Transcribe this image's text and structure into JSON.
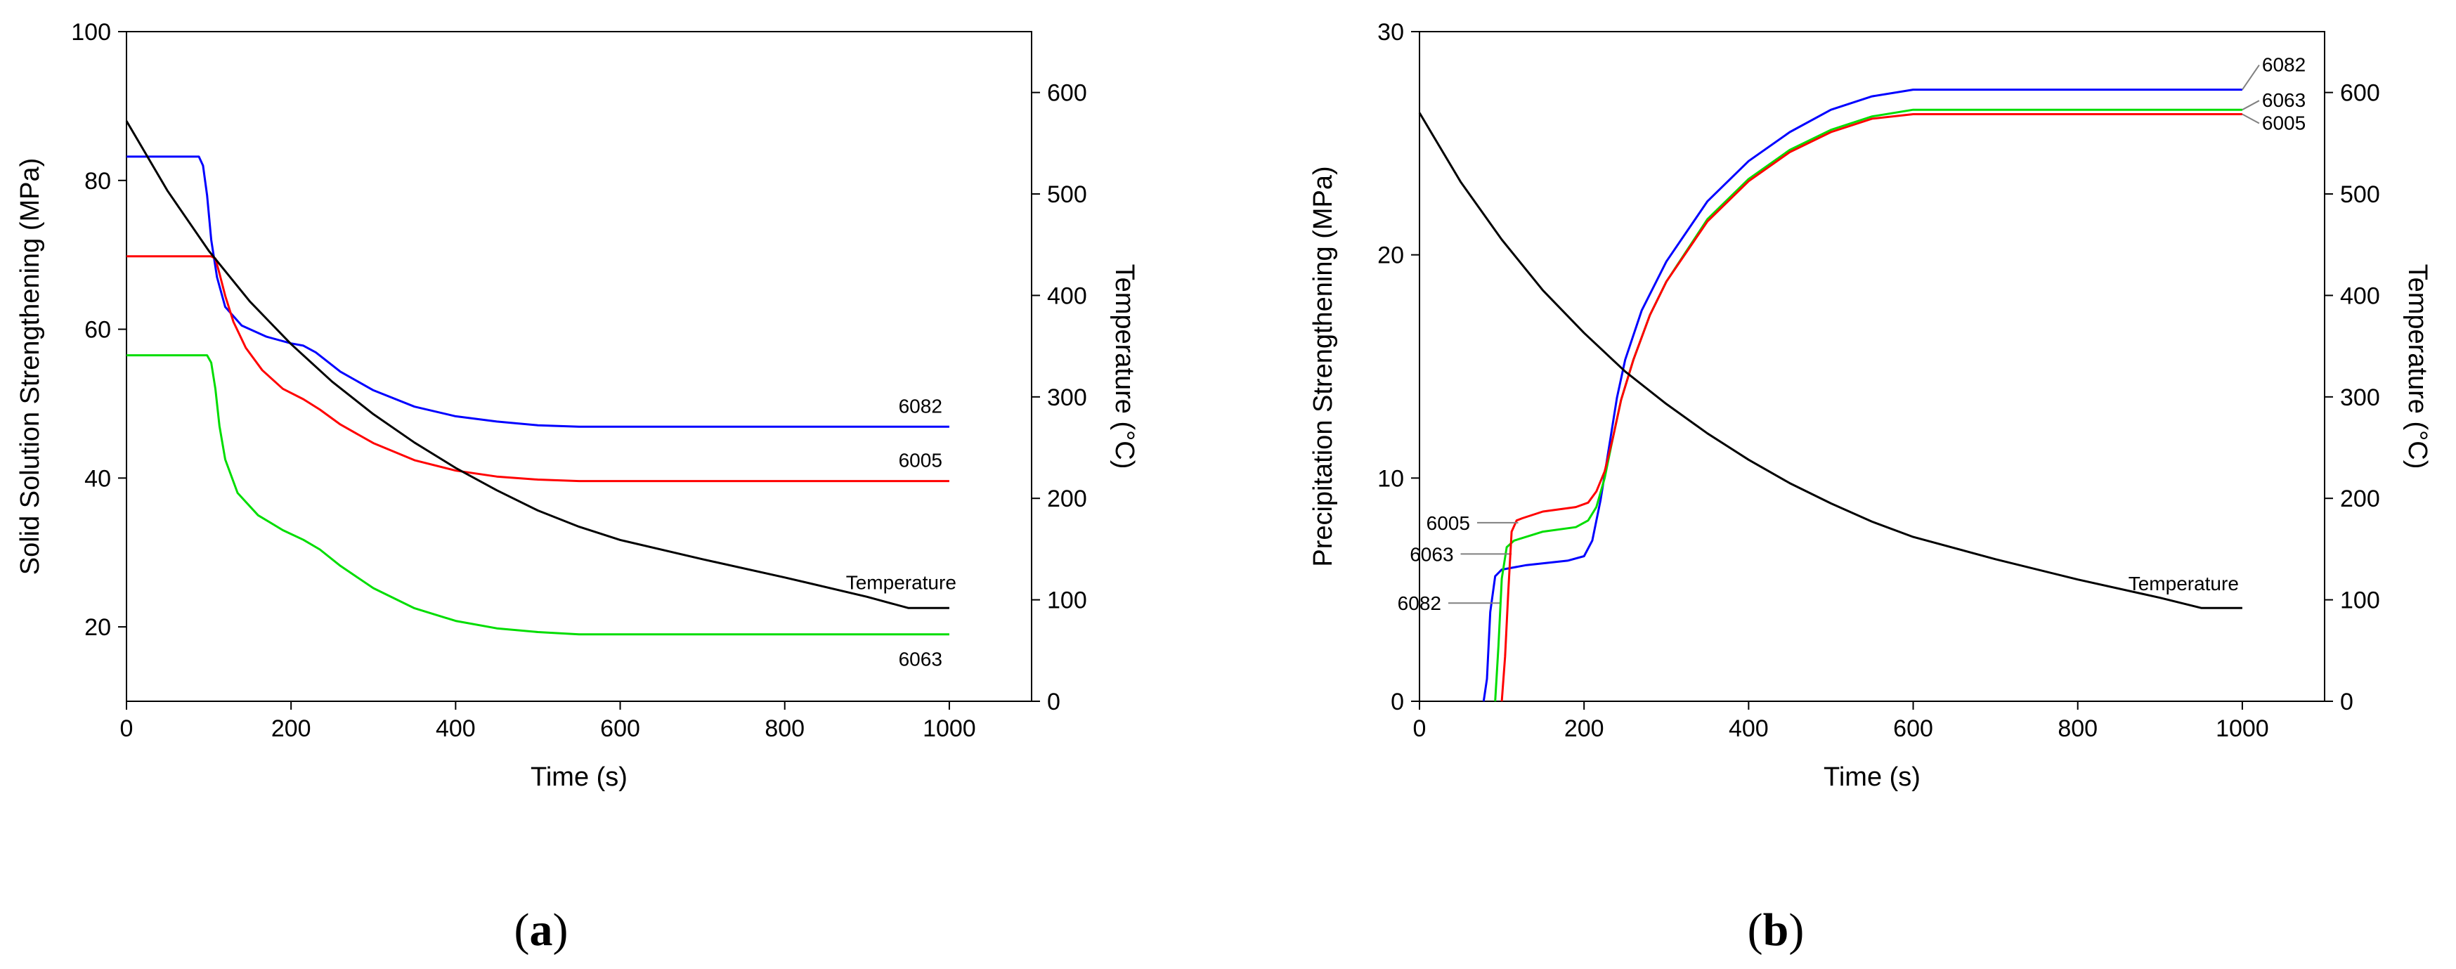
{
  "chart_data": [
    {
      "type": "line",
      "panel_label": "(a)",
      "panel_letter": "a",
      "xlabel": "Time (s)",
      "ylabel": "Solid Solution Strengthening (MPa)",
      "y2label": "Temperature (°C)",
      "xlim": [
        0,
        1100
      ],
      "ylim": [
        10,
        100
      ],
      "y2lim": [
        0,
        660
      ],
      "xticks": [
        0,
        200,
        400,
        600,
        800,
        1000
      ],
      "yticks": [
        20,
        40,
        60,
        80,
        100
      ],
      "y2ticks": [
        0,
        100,
        200,
        300,
        400,
        500,
        600
      ],
      "series": [
        {
          "name": "6082",
          "color": "#0000ff",
          "axis": "left",
          "points": [
            [
              0,
              83.2
            ],
            [
              88,
              83.2
            ],
            [
              93,
              82
            ],
            [
              98,
              78
            ],
            [
              103,
              72
            ],
            [
              110,
              67
            ],
            [
              120,
              63
            ],
            [
              140,
              60.5
            ],
            [
              170,
              59
            ],
            [
              200,
              58.1
            ],
            [
              215,
              57.8
            ],
            [
              230,
              56.9
            ],
            [
              260,
              54.3
            ],
            [
              300,
              51.8
            ],
            [
              350,
              49.6
            ],
            [
              400,
              48.3
            ],
            [
              450,
              47.6
            ],
            [
              500,
              47.1
            ],
            [
              550,
              46.9
            ],
            [
              1000,
              46.9
            ]
          ],
          "label_at": [
            1000,
            46.9
          ]
        },
        {
          "name": "6005",
          "color": "#ff0000",
          "axis": "left",
          "points": [
            [
              0,
              69.8
            ],
            [
              103,
              69.8
            ],
            [
              108,
              69.5
            ],
            [
              113,
              67.5
            ],
            [
              120,
              64.5
            ],
            [
              130,
              61
            ],
            [
              145,
              57.5
            ],
            [
              165,
              54.5
            ],
            [
              190,
              52
            ],
            [
              215,
              50.6
            ],
            [
              235,
              49.2
            ],
            [
              260,
              47.2
            ],
            [
              300,
              44.7
            ],
            [
              350,
              42.4
            ],
            [
              400,
              41
            ],
            [
              450,
              40.2
            ],
            [
              500,
              39.8
            ],
            [
              550,
              39.6
            ],
            [
              1000,
              39.6
            ]
          ],
          "label_at": [
            1000,
            39.6
          ]
        },
        {
          "name": "6063",
          "color": "#00dd00",
          "axis": "left",
          "points": [
            [
              0,
              56.5
            ],
            [
              98,
              56.5
            ],
            [
              103,
              55.5
            ],
            [
              108,
              52
            ],
            [
              113,
              47
            ],
            [
              120,
              42.5
            ],
            [
              135,
              38
            ],
            [
              160,
              35
            ],
            [
              190,
              33
            ],
            [
              215,
              31.7
            ],
            [
              235,
              30.4
            ],
            [
              260,
              28.2
            ],
            [
              300,
              25.2
            ],
            [
              350,
              22.5
            ],
            [
              400,
              20.8
            ],
            [
              450,
              19.8
            ],
            [
              500,
              19.3
            ],
            [
              550,
              19
            ],
            [
              1000,
              19
            ]
          ],
          "label_at": [
            1000,
            19
          ]
        },
        {
          "name": "Temperature",
          "color": "#000000",
          "axis": "right",
          "points": [
            [
              0,
              572
            ],
            [
              50,
              503
            ],
            [
              100,
              444
            ],
            [
              150,
              394
            ],
            [
              200,
              352
            ],
            [
              250,
              315
            ],
            [
              300,
              283
            ],
            [
              350,
              255
            ],
            [
              400,
              230
            ],
            [
              450,
              208
            ],
            [
              500,
              188
            ],
            [
              550,
              172
            ],
            [
              600,
              159
            ],
            [
              700,
              140
            ],
            [
              800,
              122
            ],
            [
              900,
              103
            ],
            [
              950,
              92
            ],
            [
              1000,
              92
            ]
          ],
          "label_at": [
            1000,
            107
          ]
        }
      ]
    },
    {
      "type": "line",
      "panel_label": "(b)",
      "panel_letter": "b",
      "xlabel": "Time (s)",
      "ylabel": "Precipitation Strengthening (MPa)",
      "y2label": "Temperature (°C)",
      "xlim": [
        0,
        1100
      ],
      "ylim": [
        0,
        30
      ],
      "y2lim": [
        0,
        660
      ],
      "xticks": [
        0,
        200,
        400,
        600,
        800,
        1000
      ],
      "yticks": [
        0,
        10,
        20,
        30
      ],
      "y2ticks": [
        0,
        100,
        200,
        300,
        400,
        500,
        600
      ],
      "series": [
        {
          "name": "6082",
          "color": "#0000ff",
          "axis": "left",
          "points": [
            [
              78,
              0
            ],
            [
              82,
              1
            ],
            [
              86,
              4
            ],
            [
              92,
              5.6
            ],
            [
              100,
              5.9
            ],
            [
              130,
              6.1
            ],
            [
              180,
              6.3
            ],
            [
              200,
              6.5
            ],
            [
              210,
              7.2
            ],
            [
              220,
              9
            ],
            [
              230,
              11.3
            ],
            [
              240,
              13.6
            ],
            [
              250,
              15.3
            ],
            [
              270,
              17.5
            ],
            [
              300,
              19.7
            ],
            [
              350,
              22.4
            ],
            [
              400,
              24.2
            ],
            [
              450,
              25.5
            ],
            [
              500,
              26.5
            ],
            [
              550,
              27.1
            ],
            [
              600,
              27.4
            ],
            [
              1000,
              27.4
            ]
          ],
          "label_at": [
            1000,
            27.4
          ]
        },
        {
          "name": "6063",
          "color": "#00dd00",
          "axis": "left",
          "points": [
            [
              92,
              0
            ],
            [
              96,
              2.5
            ],
            [
              100,
              5.5
            ],
            [
              106,
              6.9
            ],
            [
              115,
              7.2
            ],
            [
              150,
              7.6
            ],
            [
              190,
              7.8
            ],
            [
              205,
              8.1
            ],
            [
              215,
              8.7
            ],
            [
              225,
              10
            ],
            [
              235,
              11.8
            ],
            [
              245,
              13.5
            ],
            [
              260,
              15.3
            ],
            [
              280,
              17.3
            ],
            [
              300,
              18.8
            ],
            [
              350,
              21.6
            ],
            [
              400,
              23.4
            ],
            [
              450,
              24.7
            ],
            [
              500,
              25.6
            ],
            [
              550,
              26.2
            ],
            [
              600,
              26.5
            ],
            [
              1000,
              26.5
            ]
          ],
          "label_at": [
            1000,
            26.5
          ]
        },
        {
          "name": "6005",
          "color": "#ff0000",
          "axis": "left",
          "points": [
            [
              100,
              0
            ],
            [
              104,
              2
            ],
            [
              108,
              5
            ],
            [
              112,
              7.6
            ],
            [
              118,
              8.1
            ],
            [
              125,
              8.2
            ],
            [
              150,
              8.5
            ],
            [
              190,
              8.7
            ],
            [
              205,
              8.9
            ],
            [
              215,
              9.4
            ],
            [
              225,
              10.3
            ],
            [
              235,
              11.8
            ],
            [
              245,
              13.5
            ],
            [
              260,
              15.3
            ],
            [
              280,
              17.3
            ],
            [
              300,
              18.8
            ],
            [
              350,
              21.5
            ],
            [
              400,
              23.3
            ],
            [
              450,
              24.6
            ],
            [
              500,
              25.5
            ],
            [
              550,
              26.1
            ],
            [
              600,
              26.3
            ],
            [
              1000,
              26.3
            ]
          ],
          "label_at": [
            1000,
            26.3
          ]
        },
        {
          "name": "Temperature",
          "color": "#000000",
          "axis": "right",
          "points": [
            [
              0,
              580
            ],
            [
              50,
              512
            ],
            [
              100,
              455
            ],
            [
              150,
              405
            ],
            [
              200,
              363
            ],
            [
              250,
              325
            ],
            [
              300,
              293
            ],
            [
              350,
              264
            ],
            [
              400,
              238
            ],
            [
              450,
              215
            ],
            [
              500,
              195
            ],
            [
              550,
              177
            ],
            [
              600,
              162
            ],
            [
              700,
              140
            ],
            [
              800,
              120
            ],
            [
              900,
              102
            ],
            [
              950,
              92
            ],
            [
              1000,
              92
            ]
          ],
          "label_at": [
            1000,
            106
          ]
        }
      ]
    }
  ]
}
